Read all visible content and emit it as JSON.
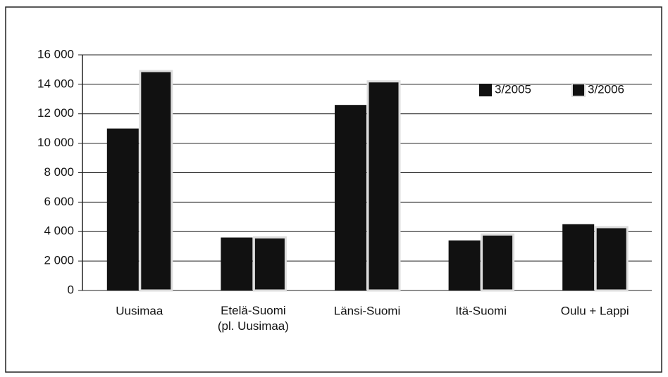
{
  "chart_data": {
    "type": "bar",
    "categories": [
      "Uusimaa",
      "Etelä-Suomi\n(pl. Uusimaa)",
      "Länsi-Suomi",
      "Itä-Suomi",
      "Oulu + Lappi"
    ],
    "series": [
      {
        "name": "3/2005",
        "color": "#111111",
        "values": [
          11000,
          3600,
          12600,
          3400,
          4500
        ]
      },
      {
        "name": "3/2006",
        "color": "#111111",
        "values": [
          14900,
          3600,
          14200,
          3800,
          4300
        ]
      }
    ],
    "ylim": [
      0,
      16000
    ],
    "yticks": [
      0,
      {
        "value": 2000,
        "label": "2 000"
      },
      {
        "value": 4000,
        "label": "4 000"
      },
      {
        "value": 6000,
        "label": "6 000"
      },
      {
        "value": 8000,
        "label": "8 000"
      },
      {
        "value": 10000,
        "label": "10 000"
      },
      {
        "value": 12000,
        "label": "12 000"
      },
      {
        "value": 14000,
        "label": "14 000"
      },
      {
        "value": 16000,
        "label": "16 000"
      }
    ],
    "grid": true,
    "legend": "top-right"
  }
}
